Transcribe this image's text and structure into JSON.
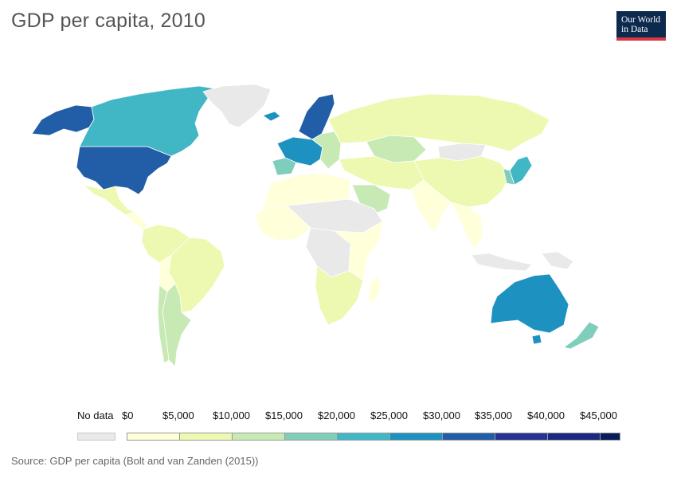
{
  "header": {
    "title": "GDP per capita, 2010",
    "logo_line1": "Our World",
    "logo_line2": "in Data"
  },
  "legend": {
    "no_data_label": "No data",
    "no_data_color": "#e9e9e9",
    "ticks": [
      "$0",
      "$5,000",
      "$10,000",
      "$15,000",
      "$20,000",
      "$25,000",
      "$30,000",
      "$35,000",
      "$40,000",
      "$45,000"
    ],
    "bins": [
      {
        "color": "#ffffd9"
      },
      {
        "color": "#edf8b1"
      },
      {
        "color": "#c7e9b4"
      },
      {
        "color": "#7fcdbb"
      },
      {
        "color": "#41b6c4"
      },
      {
        "color": "#1d91c0"
      },
      {
        "color": "#225ea8"
      },
      {
        "color": "#253494"
      },
      {
        "color": "#1a2a80"
      },
      {
        "color": "#081d58"
      }
    ]
  },
  "regions": [
    {
      "name": "Alaska",
      "color": "#225ea8"
    },
    {
      "name": "Canada",
      "color": "#41b6c4"
    },
    {
      "name": "Greenland",
      "color": "#e9e9e9"
    },
    {
      "name": "United States",
      "color": "#225ea8"
    },
    {
      "name": "Mexico",
      "color": "#edf8b1"
    },
    {
      "name": "Central America",
      "color": "#ffffd9"
    },
    {
      "name": "South America North",
      "color": "#edf8b1"
    },
    {
      "name": "Brazil",
      "color": "#edf8b1"
    },
    {
      "name": "Bolivia",
      "color": "#ffffd9"
    },
    {
      "name": "Argentina",
      "color": "#c7e9b4"
    },
    {
      "name": "Chile",
      "color": "#c7e9b4"
    },
    {
      "name": "Iceland",
      "color": "#1d91c0"
    },
    {
      "name": "Scandinavia",
      "color": "#225ea8"
    },
    {
      "name": "Western Europe",
      "color": "#1d91c0"
    },
    {
      "name": "Iberia",
      "color": "#7fcdbb"
    },
    {
      "name": "Eastern Europe",
      "color": "#c7e9b4"
    },
    {
      "name": "Russia",
      "color": "#edf8b1"
    },
    {
      "name": "Kazakhstan",
      "color": "#c7e9b4"
    },
    {
      "name": "Mongolia",
      "color": "#e9e9e9"
    },
    {
      "name": "China",
      "color": "#edf8b1"
    },
    {
      "name": "Middle East",
      "color": "#edf8b1"
    },
    {
      "name": "Arabian Peninsula",
      "color": "#c7e9b4"
    },
    {
      "name": "India",
      "color": "#ffffd9"
    },
    {
      "name": "Southeast Asia",
      "color": "#ffffd9"
    },
    {
      "name": "Japan",
      "color": "#41b6c4"
    },
    {
      "name": "Korea",
      "color": "#7fcdbb"
    },
    {
      "name": "North Africa",
      "color": "#ffffd9"
    },
    {
      "name": "Sahel",
      "color": "#e9e9e9"
    },
    {
      "name": "West Africa",
      "color": "#ffffd9"
    },
    {
      "name": "Central Africa",
      "color": "#e9e9e9"
    },
    {
      "name": "East Africa",
      "color": "#ffffd9"
    },
    {
      "name": "Southern Africa",
      "color": "#edf8b1"
    },
    {
      "name": "Madagascar",
      "color": "#ffffd9"
    },
    {
      "name": "Indonesia",
      "color": "#e9e9e9"
    },
    {
      "name": "Papua New Guinea",
      "color": "#e9e9e9"
    },
    {
      "name": "Australia",
      "color": "#1d91c0"
    },
    {
      "name": "New Zealand",
      "color": "#7fcdbb"
    }
  ],
  "footer": {
    "source": "Source: GDP per capita (Bolt and van Zanden (2015))"
  }
}
